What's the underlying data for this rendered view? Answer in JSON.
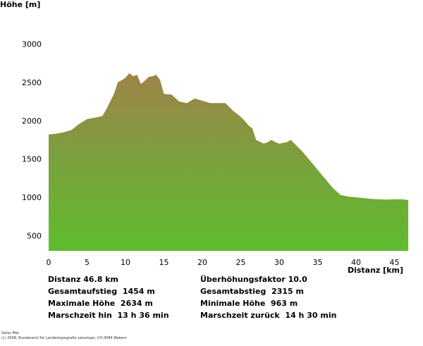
{
  "chart_data": {
    "type": "area",
    "xlabel": "Distanz [km]",
    "ylabel": "Höhe [m]",
    "xlim": [
      0,
      46.8
    ],
    "ylim": [
      300,
      3000
    ],
    "xticks": [
      "0",
      "5",
      "10",
      "15",
      "20",
      "25",
      "30",
      "35",
      "40",
      "45"
    ],
    "xtick_values": [
      0,
      5,
      10,
      15,
      20,
      25,
      30,
      35,
      40,
      45
    ],
    "yticks": [
      "500",
      "1000",
      "1500",
      "2000",
      "2500",
      "3000"
    ],
    "ytick_values": [
      500,
      1000,
      1500,
      2000,
      2500,
      3000
    ],
    "grid": false,
    "series": [
      {
        "x": [
          0,
          1,
          2,
          3,
          4,
          5,
          6,
          7,
          7.5,
          8,
          8.5,
          9,
          9.5,
          10,
          10.5,
          11,
          11.5,
          12,
          12.5,
          13,
          13.5,
          14,
          14.5,
          15,
          16,
          17,
          18,
          19,
          20,
          21,
          22,
          23,
          24,
          25,
          25.5,
          26,
          26.5,
          27,
          28,
          28.5,
          29,
          29.5,
          30,
          31,
          31.5,
          32,
          33,
          34,
          35,
          36,
          37,
          38,
          39,
          40,
          41,
          42,
          43,
          44,
          45,
          46,
          46.8
        ],
        "y": [
          1820,
          1830,
          1850,
          1880,
          1960,
          2020,
          2040,
          2060,
          2150,
          2250,
          2350,
          2500,
          2530,
          2560,
          2620,
          2580,
          2600,
          2480,
          2520,
          2570,
          2580,
          2600,
          2530,
          2350,
          2340,
          2250,
          2230,
          2290,
          2260,
          2230,
          2230,
          2230,
          2130,
          2050,
          2000,
          1940,
          1900,
          1750,
          1700,
          1720,
          1750,
          1720,
          1700,
          1720,
          1750,
          1700,
          1600,
          1480,
          1360,
          1240,
          1120,
          1030,
          1010,
          1000,
          990,
          980,
          975,
          970,
          975,
          975,
          963
        ]
      }
    ],
    "stats": [
      {
        "label": "Distanz",
        "value": "46.8 km"
      },
      {
        "label": "Gesamtaufstieg",
        "value": "1454 m"
      },
      {
        "label": "Maximale Höhe",
        "value": "2634 m"
      },
      {
        "label": "Marschzeit hin",
        "value": "13 h 36 min"
      },
      {
        "label": "Überhöhungsfaktor",
        "value": "10.0"
      },
      {
        "label": "Gesamtabstieg",
        "value": "2315 m"
      },
      {
        "label": "Minimale Höhe",
        "value": "963 m"
      },
      {
        "label": "Marschzeit zurück",
        "value": "14 h 30 min"
      }
    ],
    "colors": {
      "gradient_top": "#9e8346",
      "gradient_mid": "#7d9e3f",
      "gradient_bottom": "#5ebc2e"
    }
  },
  "credits": {
    "line1": "Swiss Mat",
    "line2": "(c) 2008, Bundesamt für Landestopografie swisstopo, CH-3084 Wabern"
  }
}
